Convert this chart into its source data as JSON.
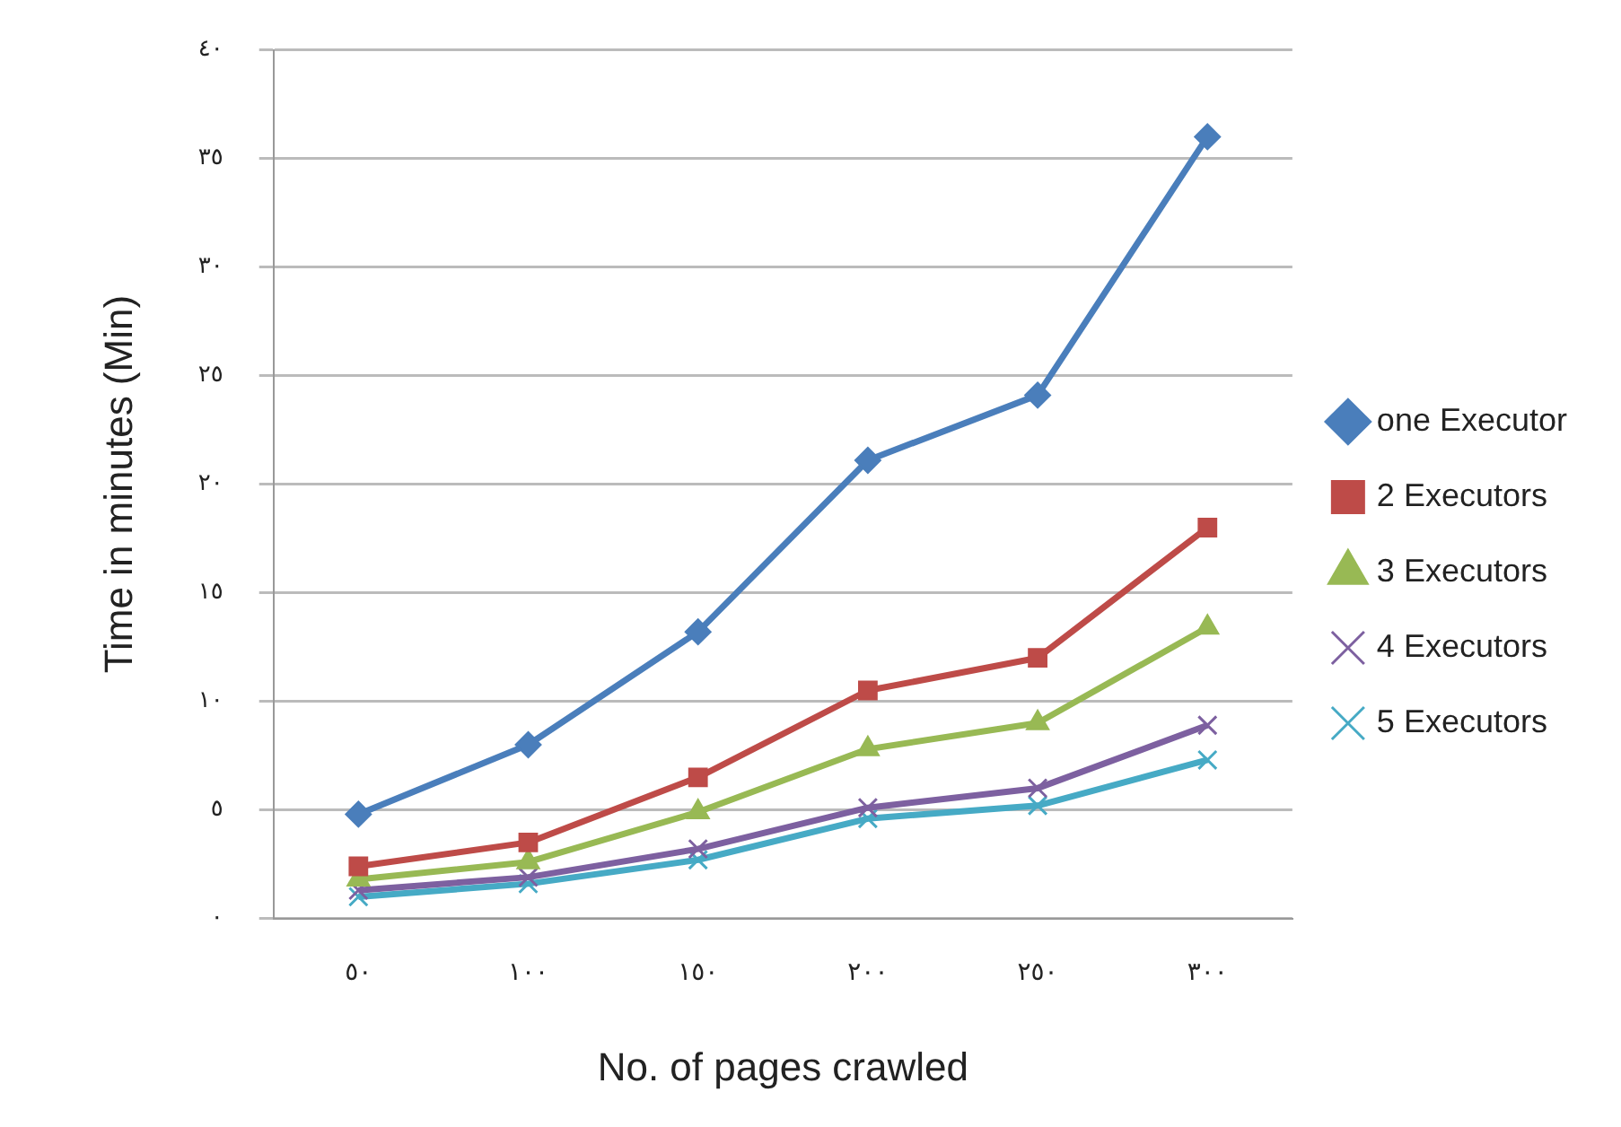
{
  "chart_data": {
    "type": "line",
    "xlabel": "No. of pages crawled",
    "ylabel": "Time in minutes (Min)",
    "categories": [
      "٥٠",
      "١٠٠",
      "١٥٠",
      "٢٠٠",
      "٢٥٠",
      "٣٠٠"
    ],
    "series": [
      {
        "name": "one Executor",
        "color": "#4a7ebb",
        "marker": "diamond",
        "values": [
          4.8,
          8.0,
          13.2,
          21.1,
          24.1,
          36.0
        ]
      },
      {
        "name": "2 Executors",
        "color": "#be4b48",
        "marker": "square",
        "values": [
          2.4,
          3.5,
          6.5,
          10.5,
          12.0,
          18.0
        ]
      },
      {
        "name": "3 Executors",
        "color": "#98b954",
        "marker": "triangle",
        "values": [
          1.8,
          2.6,
          4.9,
          7.8,
          9.0,
          13.4
        ]
      },
      {
        "name": "4 Executors",
        "color": "#7d60a0",
        "marker": "cross",
        "values": [
          1.3,
          1.9,
          3.2,
          5.1,
          6.0,
          8.9
        ]
      },
      {
        "name": "5 Executors",
        "color": "#46aac5",
        "marker": "cross",
        "values": [
          1.0,
          1.6,
          2.7,
          4.6,
          5.2,
          7.3
        ]
      }
    ],
    "ylim": [
      0,
      40
    ],
    "yticks": [
      {
        "value": 0,
        "label": "٠"
      },
      {
        "value": 5,
        "label": "٥"
      },
      {
        "value": 10,
        "label": "١٠"
      },
      {
        "value": 15,
        "label": "١٥"
      },
      {
        "value": 20,
        "label": "٢٠"
      },
      {
        "value": 25,
        "label": "٢٥"
      },
      {
        "value": 30,
        "label": "٣٠"
      },
      {
        "value": 35,
        "label": "٣٥"
      },
      {
        "value": 40,
        "label": "٤٠"
      }
    ],
    "grid": "y",
    "legend": "right",
    "line_style": "solid"
  }
}
